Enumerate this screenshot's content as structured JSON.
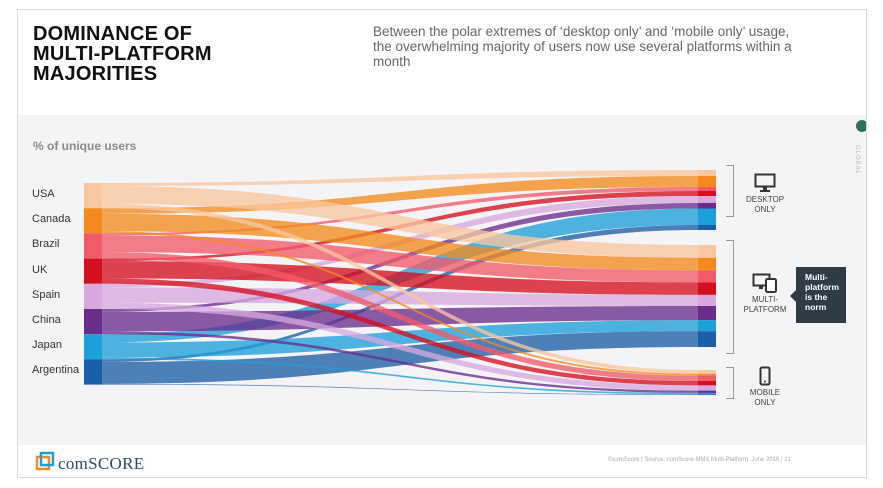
{
  "slide": {
    "title_lines": [
      "DOMINANCE OF",
      "MULTI-PLATFORM",
      "MAJORITIES"
    ],
    "subtitle": "Between the polar extremes of ‘desktop only’ and ‘mobile only’ usage, the overwhelming majority of users now use several platforms within a month",
    "side_vertical_text": "GLOBAL",
    "callout_lines": [
      "Multi-",
      "platform",
      "is the",
      "norm"
    ],
    "logo_text": "comSCORE",
    "footer": "©comScore  |  Source: comScore MMX Multi-Platform, June 2016  |     21"
  },
  "chart_data": {
    "type": "sankey",
    "ylabel": "% of unique users",
    "sources": [
      "USA",
      "Canada",
      "Brazil",
      "UK",
      "Spain",
      "China",
      "Japan",
      "Argentina"
    ],
    "targets": [
      {
        "lines": [
          "DESKTOP",
          "ONLY"
        ],
        "icon": "monitor-icon"
      },
      {
        "lines": [
          "MULTI-",
          "PLATFORM"
        ],
        "icon": "multi-device-icon"
      },
      {
        "lines": [
          "MOBILE",
          "ONLY"
        ],
        "icon": "phone-icon"
      }
    ],
    "colors": [
      "#f8c79f",
      "#f28a1e",
      "#f25a6a",
      "#d4101f",
      "#d6a8de",
      "#6a2d8c",
      "#1d9fd8",
      "#1d5fa6"
    ],
    "values": [
      [
        12,
        70,
        18
      ],
      [
        22,
        69,
        9
      ],
      [
        8,
        66,
        26
      ],
      [
        10,
        69,
        21
      ],
      [
        14,
        61,
        25
      ],
      [
        11,
        78,
        11
      ],
      [
        33,
        60,
        7
      ],
      [
        10,
        87,
        3
      ]
    ]
  }
}
